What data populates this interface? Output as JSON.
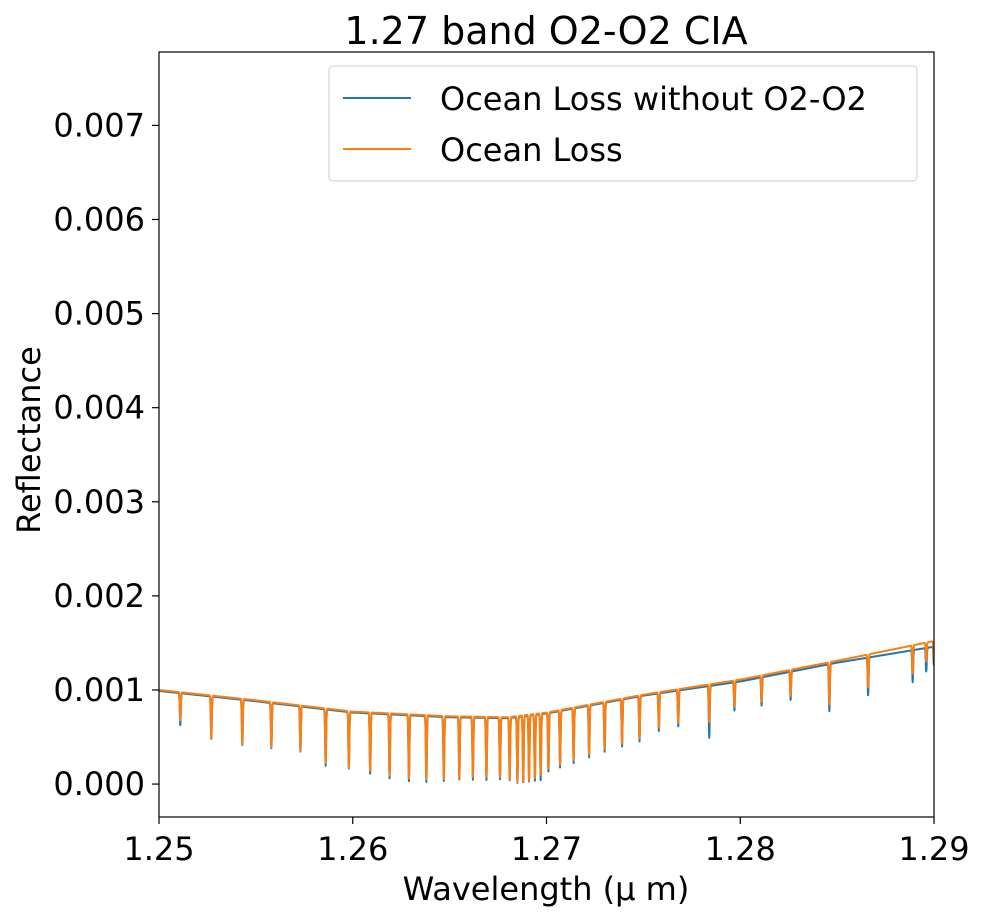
{
  "chart_data": {
    "type": "line",
    "title": "1.27 band O2-O2 CIA",
    "xlabel": "Wavelength (μ m)",
    "ylabel": "Reflectance",
    "xlim": [
      1.25,
      1.29
    ],
    "ylim": [
      -0.00035,
      0.00778
    ],
    "xticks": [
      1.25,
      1.26,
      1.27,
      1.28,
      1.29
    ],
    "xtick_labels": [
      "1.25",
      "1.26",
      "1.27",
      "1.28",
      "1.29"
    ],
    "yticks": [
      0.0,
      0.001,
      0.002,
      0.003,
      0.004,
      0.005,
      0.006,
      0.007
    ],
    "ytick_labels": [
      "0.000",
      "0.001",
      "0.002",
      "0.003",
      "0.004",
      "0.005",
      "0.006",
      "0.007"
    ],
    "grid": false,
    "legend_position": "upper-right",
    "series": [
      {
        "name": "Ocean Loss without O2-O2",
        "color": "#1f77b4",
        "continuum": {
          "x": [
            1.25,
            1.255,
            1.26,
            1.265,
            1.268,
            1.27,
            1.275,
            1.28,
            1.285,
            1.29
          ],
          "y": [
            0.00099,
            0.00088,
            0.00076,
            0.00071,
            0.0007,
            0.00075,
            0.00094,
            0.00109,
            0.00129,
            0.00146
          ]
        },
        "absorption_lines": [
          {
            "x": 1.2511,
            "depth": 0.00034
          },
          {
            "x": 1.2527,
            "depth": 0.00045
          },
          {
            "x": 1.2543,
            "depth": 0.00048
          },
          {
            "x": 1.2558,
            "depth": 0.00048
          },
          {
            "x": 1.2573,
            "depth": 0.00048
          },
          {
            "x": 1.2586,
            "depth": 0.0006
          },
          {
            "x": 1.2598,
            "depth": 0.0006
          },
          {
            "x": 1.2609,
            "depth": 0.00064
          },
          {
            "x": 1.2619,
            "depth": 0.00068
          },
          {
            "x": 1.2629,
            "depth": 0.0007
          },
          {
            "x": 1.2638,
            "depth": 0.0007
          },
          {
            "x": 1.2647,
            "depth": 0.00068
          },
          {
            "x": 1.2655,
            "depth": 0.00066
          },
          {
            "x": 1.2662,
            "depth": 0.00066
          },
          {
            "x": 1.2669,
            "depth": 0.00066
          },
          {
            "x": 1.2676,
            "depth": 0.00065
          },
          {
            "x": 1.2681,
            "depth": 0.00066
          },
          {
            "x": 1.2685,
            "depth": 0.0007
          },
          {
            "x": 1.2688,
            "depth": 0.0007
          },
          {
            "x": 1.2691,
            "depth": 0.0007
          },
          {
            "x": 1.2694,
            "depth": 0.0007
          },
          {
            "x": 1.2697,
            "depth": 0.0007
          },
          {
            "x": 1.2701,
            "depth": 0.00062
          },
          {
            "x": 1.2707,
            "depth": 0.0006
          },
          {
            "x": 1.2714,
            "depth": 0.00058
          },
          {
            "x": 1.2722,
            "depth": 0.00055
          },
          {
            "x": 1.273,
            "depth": 0.00052
          },
          {
            "x": 1.2739,
            "depth": 0.0005
          },
          {
            "x": 1.2748,
            "depth": 0.00048
          },
          {
            "x": 1.2758,
            "depth": 0.0004
          },
          {
            "x": 1.2768,
            "depth": 0.00038
          },
          {
            "x": 1.2784,
            "depth": 0.00055
          },
          {
            "x": 1.2797,
            "depth": 0.0003
          },
          {
            "x": 1.2811,
            "depth": 0.0003
          },
          {
            "x": 1.2826,
            "depth": 0.0003
          },
          {
            "x": 1.2846,
            "depth": 0.0005
          },
          {
            "x": 1.2866,
            "depth": 0.0004
          },
          {
            "x": 1.2889,
            "depth": 0.00034
          },
          {
            "x": 1.2896,
            "depth": 0.00025
          },
          {
            "x": 1.29,
            "depth": 0.0002
          }
        ]
      },
      {
        "name": "Ocean Loss",
        "color": "#ff7f0e",
        "continuum": {
          "x": [
            1.25,
            1.255,
            1.26,
            1.265,
            1.268,
            1.27,
            1.275,
            1.28,
            1.285,
            1.29
          ],
          "y": [
            0.001,
            0.00089,
            0.00077,
            0.00072,
            0.00071,
            0.00076,
            0.00095,
            0.00111,
            0.00131,
            0.00152
          ]
        },
        "absorption_lines": [
          {
            "x": 1.2511,
            "depth": 0.0003
          },
          {
            "x": 1.2527,
            "depth": 0.00045
          },
          {
            "x": 1.2543,
            "depth": 0.00048
          },
          {
            "x": 1.2558,
            "depth": 0.00048
          },
          {
            "x": 1.2573,
            "depth": 0.00048
          },
          {
            "x": 1.2586,
            "depth": 0.00058
          },
          {
            "x": 1.2598,
            "depth": 0.0006
          },
          {
            "x": 1.2609,
            "depth": 0.00062
          },
          {
            "x": 1.2619,
            "depth": 0.00066
          },
          {
            "x": 1.2629,
            "depth": 0.00068
          },
          {
            "x": 1.2638,
            "depth": 0.00068
          },
          {
            "x": 1.2647,
            "depth": 0.00067
          },
          {
            "x": 1.2655,
            "depth": 0.00066
          },
          {
            "x": 1.2662,
            "depth": 0.00064
          },
          {
            "x": 1.2669,
            "depth": 0.00064
          },
          {
            "x": 1.2676,
            "depth": 0.00064
          },
          {
            "x": 1.2681,
            "depth": 0.00066
          },
          {
            "x": 1.2685,
            "depth": 0.0007
          },
          {
            "x": 1.2688,
            "depth": 0.0007
          },
          {
            "x": 1.2691,
            "depth": 0.0007
          },
          {
            "x": 1.2694,
            "depth": 0.00068
          },
          {
            "x": 1.2697,
            "depth": 0.00066
          },
          {
            "x": 1.2701,
            "depth": 0.0006
          },
          {
            "x": 1.2707,
            "depth": 0.00058
          },
          {
            "x": 1.2714,
            "depth": 0.00056
          },
          {
            "x": 1.2722,
            "depth": 0.00053
          },
          {
            "x": 1.273,
            "depth": 0.0005
          },
          {
            "x": 1.2739,
            "depth": 0.00048
          },
          {
            "x": 1.2748,
            "depth": 0.00046
          },
          {
            "x": 1.2758,
            "depth": 0.00038
          },
          {
            "x": 1.2768,
            "depth": 0.00036
          },
          {
            "x": 1.2784,
            "depth": 0.0004
          },
          {
            "x": 1.2797,
            "depth": 0.00028
          },
          {
            "x": 1.2811,
            "depth": 0.00028
          },
          {
            "x": 1.2826,
            "depth": 0.00028
          },
          {
            "x": 1.2846,
            "depth": 0.00045
          },
          {
            "x": 1.2866,
            "depth": 0.00035
          },
          {
            "x": 1.2889,
            "depth": 0.0003
          },
          {
            "x": 1.2896,
            "depth": 0.0002
          },
          {
            "x": 1.29,
            "depth": 0.00018
          }
        ]
      }
    ]
  }
}
